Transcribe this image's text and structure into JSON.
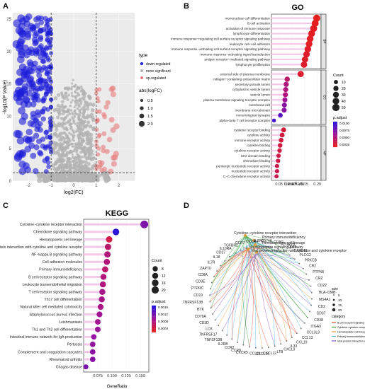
{
  "panels": {
    "A": {
      "letter": "A"
    },
    "B": {
      "letter": "B"
    },
    "C": {
      "letter": "C"
    },
    "D": {
      "letter": "D"
    }
  },
  "chart_data": [
    {
      "id": "A",
      "type": "scatter",
      "title": "",
      "xlabel": "log2(FC)",
      "ylabel": "-log10(P Value)",
      "x_ticks": [
        "-2",
        "-1",
        "0",
        "1",
        "2"
      ],
      "y_ticks": [
        "0",
        "5",
        "10",
        "15",
        "20",
        "25"
      ],
      "xlim": [
        -2.7,
        2.7
      ],
      "ylim": [
        0,
        26
      ],
      "thresholds": {
        "x": [
          -1,
          1
        ],
        "y": 1.3
      },
      "legend": {
        "type_title": "type",
        "types": [
          {
            "name": "down-regulated",
            "color": "#1a1adb"
          },
          {
            "name": "none significant",
            "color": "#b3b3b3"
          },
          {
            "name": "up-regulated",
            "color": "#e87a7a"
          }
        ],
        "size_title": "abs(logFC)",
        "sizes": [
          "0.5",
          "1.0",
          "1.5",
          "2.0"
        ]
      }
    },
    {
      "id": "B",
      "type": "scatter",
      "title": "GO",
      "xlabel": "GeneRatio",
      "x_ticks": [
        "0.05",
        "0.10",
        "0.15",
        "0.20"
      ],
      "xlim": [
        0.02,
        0.215
      ],
      "facets": [
        {
          "name": "BP",
          "terms": [
            {
              "term": "mononuclear cell differentiation",
              "ratio": 0.198,
              "count": 48,
              "p": 0.0001
            },
            {
              "term": "B cell activation",
              "ratio": 0.192,
              "count": 46,
              "p": 0.0001
            },
            {
              "term": "activation of immune response",
              "ratio": 0.186,
              "count": 45,
              "p": 0.0002
            },
            {
              "term": "lymphocyte differentiation",
              "ratio": 0.178,
              "count": 42,
              "p": 0.0002
            },
            {
              "term": "immune response−regulating cell surface receptor signaling pathway",
              "ratio": 0.172,
              "count": 41,
              "p": 0.0003
            },
            {
              "term": "leukocyte cell−cell adhesion",
              "ratio": 0.168,
              "count": 40,
              "p": 0.0003
            },
            {
              "term": "immune response−activating cell surface receptor signaling pathway",
              "ratio": 0.163,
              "count": 39,
              "p": 0.0004
            },
            {
              "term": "immune response−activating signal transduction",
              "ratio": 0.158,
              "count": 38,
              "p": 0.0005
            },
            {
              "term": "antigen receptor−mediated signaling pathway",
              "ratio": 0.152,
              "count": 37,
              "p": 0.0005
            },
            {
              "term": "lymphocyte proliferation",
              "ratio": 0.148,
              "count": 36,
              "p": 0.0006
            }
          ]
        },
        {
          "name": "CC",
          "terms": [
            {
              "term": "external side of plasma membrane",
              "ratio": 0.135,
              "count": 34,
              "p": 0.0008
            },
            {
              "term": "collagen−containing extracellular matrix",
              "ratio": 0.082,
              "count": 21,
              "p": 0.003
            },
            {
              "term": "secretory granule lumen",
              "ratio": 0.078,
              "count": 20,
              "p": 0.004
            },
            {
              "term": "cytoplasmic vesicle lumen",
              "ratio": 0.076,
              "count": 19,
              "p": 0.004
            },
            {
              "term": "vesicle lumen",
              "ratio": 0.075,
              "count": 19,
              "p": 0.004
            },
            {
              "term": "plasma membrane signaling receptor complex",
              "ratio": 0.073,
              "count": 18,
              "p": 0.005
            },
            {
              "term": "membrane raft",
              "ratio": 0.071,
              "count": 18,
              "p": 0.006
            },
            {
              "term": "membrane microdomain",
              "ratio": 0.07,
              "count": 18,
              "p": 0.006
            },
            {
              "term": "immunological synapse",
              "ratio": 0.055,
              "count": 14,
              "p": 0.008
            },
            {
              "term": "alpha−beta T cell receptor complex",
              "ratio": 0.03,
              "count": 8,
              "p": 0.009
            }
          ]
        },
        {
          "name": "MF",
          "terms": [
            {
              "term": "cytokine receptor binding",
              "ratio": 0.068,
              "count": 17,
              "p": 0.0012
            },
            {
              "term": "cytokine activity",
              "ratio": 0.062,
              "count": 16,
              "p": 0.0013
            },
            {
              "term": "immune receptor activity",
              "ratio": 0.058,
              "count": 15,
              "p": 0.0014
            },
            {
              "term": "cytokine binding",
              "ratio": 0.054,
              "count": 14,
              "p": 0.0015
            },
            {
              "term": "cytokine receptor activity",
              "ratio": 0.052,
              "count": 13,
              "p": 0.0016
            },
            {
              "term": "SH2 domain binding",
              "ratio": 0.048,
              "count": 12,
              "p": 0.0017
            },
            {
              "term": "chemokine binding",
              "ratio": 0.046,
              "count": 12,
              "p": 0.0018
            },
            {
              "term": "purinergic nucleotide receptor activity",
              "ratio": 0.042,
              "count": 11,
              "p": 0.0019
            },
            {
              "term": "nucleotide receptor activity",
              "ratio": 0.042,
              "count": 11,
              "p": 0.0019
            },
            {
              "term": "C−C chemokine receptor activity",
              "ratio": 0.04,
              "count": 10,
              "p": 0.002
            }
          ]
        }
      ],
      "legend": {
        "count_title": "Count",
        "count_values": [
          "10",
          "20",
          "30",
          "40",
          "50"
        ],
        "p_title": "p.adjust",
        "p_ticks": [
          "0.0100",
          "0.0075",
          "0.0050",
          "0.0025"
        ]
      }
    },
    {
      "id": "C",
      "type": "scatter",
      "title": "KEGG",
      "xlabel": "GeneRatio",
      "x_ticks": [
        "0.075",
        "0.100",
        "0.125",
        "0.150"
      ],
      "xlim": [
        0.05,
        0.165
      ],
      "terms": [
        {
          "term": "Cytokine−cytokine receptor interaction",
          "ratio": 0.157,
          "count": 24,
          "p": 0.002
        },
        {
          "term": "Chemokine signaling pathway",
          "ratio": 0.107,
          "count": 16,
          "p": 0.003
        },
        {
          "term": "Hematopoietic cell lineage",
          "ratio": 0.095,
          "count": 14,
          "p": 0.0005
        },
        {
          "term": "Viral protein interaction with cytokine and cytokine receptor",
          "ratio": 0.093,
          "count": 14,
          "p": 0.001
        },
        {
          "term": "NF−kappa B signaling pathway",
          "ratio": 0.092,
          "count": 14,
          "p": 0.0012
        },
        {
          "term": "Cell adhesion molecules",
          "ratio": 0.091,
          "count": 13,
          "p": 0.0012
        },
        {
          "term": "Primary immunodeficiency",
          "ratio": 0.088,
          "count": 13,
          "p": 0.001
        },
        {
          "term": "B cell receptor signaling pathway",
          "ratio": 0.085,
          "count": 12,
          "p": 0.0012
        },
        {
          "term": "Leukocyte transendothelial migration",
          "ratio": 0.084,
          "count": 12,
          "p": 0.0012
        },
        {
          "term": "T cell receptor signaling pathway",
          "ratio": 0.083,
          "count": 12,
          "p": 0.0014
        },
        {
          "term": "Th17 cell differentiation",
          "ratio": 0.082,
          "count": 12,
          "p": 0.0014
        },
        {
          "term": "Natural killer cell mediated cytotoxicity",
          "ratio": 0.08,
          "count": 11,
          "p": 0.0013
        },
        {
          "term": "Staphylococcus aureus infection",
          "ratio": 0.078,
          "count": 11,
          "p": 0.0015
        },
        {
          "term": "Leishmaniasis",
          "ratio": 0.075,
          "count": 10,
          "p": 0.0015
        },
        {
          "term": "Th1 and Th2 cell differentiation",
          "ratio": 0.075,
          "count": 10,
          "p": 0.0016
        },
        {
          "term": "Intestinal immune network for IgA production",
          "ratio": 0.068,
          "count": 9,
          "p": 0.0017
        },
        {
          "term": "Pertussis",
          "ratio": 0.066,
          "count": 9,
          "p": 0.0017
        },
        {
          "term": "Complement and coagulation cascades",
          "ratio": 0.066,
          "count": 9,
          "p": 0.0018
        },
        {
          "term": "Rheumatoid arthritis",
          "ratio": 0.066,
          "count": 9,
          "p": 0.0019
        },
        {
          "term": "Chagas disease",
          "ratio": 0.054,
          "count": 7,
          "p": 0.002
        }
      ],
      "legend": {
        "count_title": "Count",
        "count_values": [
          "8",
          "12",
          "16",
          "20"
        ],
        "p_title": "p.adjust",
        "p_ticks": [
          "0.0016",
          "0.0012",
          "0.0008",
          "0.0004"
        ]
      }
    }
  ],
  "network": {
    "categories": [
      {
        "name": "Primary immunodeficiency",
        "color": "#56b4e9"
      },
      {
        "name": "Hematopoietic cell lineage",
        "color": "#e6a23c"
      },
      {
        "name": "B cell receptor signaling pathway",
        "color": "#e64b35"
      },
      {
        "name": "Viral protein interaction with cytokine and cytokine receptor",
        "color": "#7f4fc9"
      },
      {
        "name": "Cytokine−cytokine receptor interaction",
        "color": "#2ca02c"
      }
    ],
    "genes": [
      "FCGR2B",
      "CD72",
      "CARD11",
      "PLCG2",
      "PRKCB",
      "CR2",
      "PTPN6",
      "CR2",
      "CD22",
      "HLA−DMB",
      "MS4A1",
      "CD2",
      "CD37",
      "CD38",
      "ITGAX",
      "CCL3L3",
      "CCL13",
      "CCL19",
      "IL33",
      "CXCL9",
      "LTB",
      "CXCL12",
      "CXCL14",
      "CCL21",
      "CXCR5",
      "CCR8",
      "CCR2",
      "IL2RB",
      "TNFSF13B",
      "TNFRSF17",
      "LCK",
      "CD3D",
      "CD79A",
      "BTK",
      "TNFRSF13B",
      "CD19",
      "PTPRC",
      "CD3E",
      "CD8A",
      "ZAP70",
      "IL7R",
      "IL18",
      "CD27",
      "IL10RA",
      "TGFBR2",
      "CCR7",
      "CXCR4",
      "IL2RG",
      "CD79B",
      "CD3G"
    ],
    "legend": {
      "size_title": "size",
      "size_values": [
        "5",
        "10",
        "15",
        "20"
      ],
      "category_title": "category",
      "categories": [
        "B cell receptor signaling pathway",
        "Cytokine−cytokine receptor interaction",
        "Hematopoietic cell lineage",
        "Primary immunodeficiency",
        "Viral protein interaction with cytokine and cytokine receptor"
      ]
    }
  }
}
